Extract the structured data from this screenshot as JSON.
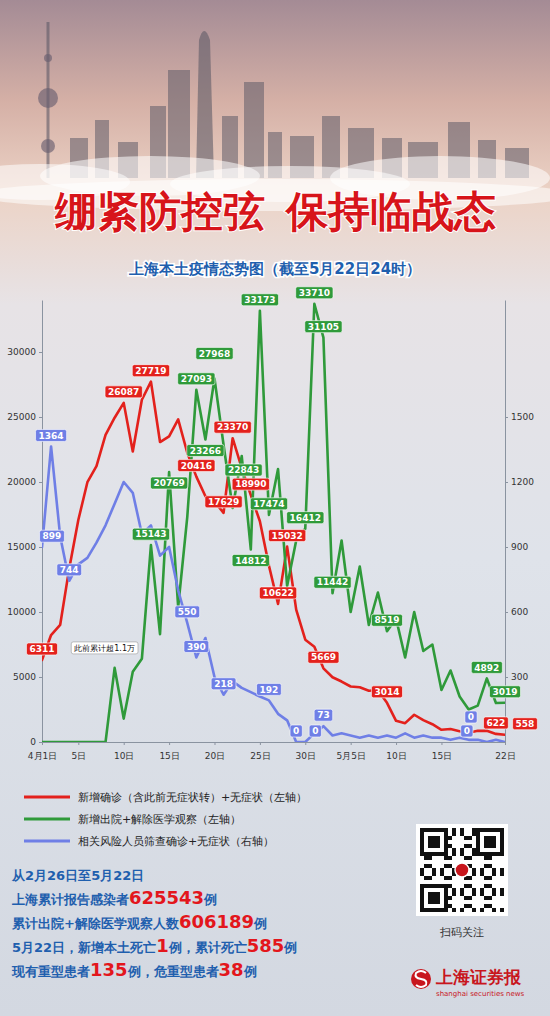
{
  "chart_data": {
    "type": "line",
    "title": "绷紧防控弦  保持临战态",
    "subtitle": "上海本土疫情态势图（截至5月22日24时）",
    "categories": [
      "4月1日",
      null,
      null,
      null,
      "5日",
      null,
      null,
      null,
      null,
      "10日",
      null,
      null,
      null,
      null,
      "15日",
      null,
      null,
      null,
      null,
      "20日",
      null,
      null,
      null,
      null,
      "25日",
      null,
      null,
      null,
      null,
      "30日",
      null,
      null,
      null,
      null,
      "5月5日",
      null,
      null,
      null,
      null,
      "10日",
      null,
      null,
      null,
      null,
      "15日",
      null,
      null,
      null,
      null,
      null,
      null,
      "22日"
    ],
    "ylim": [
      0,
      34000
    ],
    "yticks": [
      0,
      5000,
      10000,
      15000,
      20000,
      25000,
      30000
    ],
    "y2lim": [
      0,
      2040
    ],
    "y2ticks": [
      300,
      600,
      900,
      1200,
      1500
    ],
    "grid": false,
    "legend": "bottom",
    "data_labels": true,
    "series": [
      {
        "name": "新增确诊（含此前无症状转）+无症状（左轴）",
        "color": "#e3211c",
        "marker": "none",
        "line_style": "solid",
        "values": [
          6311,
          8226,
          9006,
          13354,
          17077,
          19982,
          21222,
          23624,
          24944,
          26087,
          22348,
          26330,
          27719,
          23072,
          23513,
          24820,
          22248,
          20416,
          18901,
          18495,
          17629,
          23370,
          21058,
          18990,
          16980,
          13562,
          10622,
          15032,
          10181,
          7872,
          7333,
          5669,
          4982,
          4651,
          4269,
          4214,
          3947,
          3975,
          3014,
          1631,
          1449,
          2096,
          1681,
          1369,
          938,
          1000,
          823,
          719,
          858,
          868,
          622,
          558
        ],
        "value_labels": [
          "6311",
          null,
          null,
          null,
          null,
          null,
          null,
          null,
          null,
          "26087",
          null,
          null,
          "27719",
          null,
          null,
          null,
          null,
          "20416",
          null,
          null,
          "17629",
          "23370",
          null,
          "18990",
          null,
          null,
          "10622",
          "15032",
          null,
          null,
          null,
          "5669",
          null,
          null,
          null,
          null,
          null,
          null,
          "3014",
          null,
          null,
          null,
          null,
          null,
          null,
          null,
          null,
          null,
          null,
          null,
          "622",
          "558"
        ]
      },
      {
        "name": "新增出院+解除医学观察（左轴）",
        "color": "#2f9a3a",
        "marker": "none",
        "line_style": "solid",
        "annotation": "此前累计超1.1万",
        "values": [
          0,
          0,
          0,
          0,
          0,
          0,
          0,
          0,
          5700,
          1800,
          5400,
          6400,
          15143,
          8300,
          20769,
          10400,
          17300,
          27093,
          23266,
          27968,
          22843,
          18000,
          22000,
          14812,
          33173,
          17474,
          21000,
          12000,
          15500,
          16412,
          33710,
          31105,
          11442,
          15500,
          10000,
          13500,
          9000,
          11500,
          8519,
          9500,
          6500,
          10000,
          7000,
          7500,
          4000,
          5500,
          3500,
          2500,
          2800,
          4892,
          3000,
          3019
        ],
        "value_labels": [
          null,
          null,
          null,
          null,
          null,
          null,
          null,
          null,
          null,
          null,
          null,
          null,
          "15143",
          null,
          "20769",
          null,
          null,
          "27093",
          "23266",
          "27968",
          "22843",
          null,
          null,
          "14812",
          "33173",
          "17474",
          null,
          null,
          null,
          "16412",
          "33710",
          "31105",
          "11442",
          null,
          null,
          null,
          null,
          null,
          "8519",
          null,
          null,
          null,
          null,
          null,
          null,
          null,
          null,
          null,
          null,
          "4892",
          null,
          "3019"
        ]
      },
      {
        "name": "相关风险人员筛查确诊+无症状（右轴）",
        "color": "#6f7fe6",
        "marker": "none",
        "line_style": "solid",
        "axis": "y2",
        "values": [
          899,
          1364,
          950,
          744,
          820,
          850,
          920,
          1000,
          1100,
          1200,
          1150,
          960,
          1000,
          860,
          900,
          700,
          550,
          390,
          480,
          300,
          218,
          280,
          250,
          230,
          210,
          192,
          130,
          100,
          0,
          0,
          40,
          73,
          30,
          40,
          30,
          20,
          30,
          20,
          30,
          20,
          40,
          20,
          30,
          20,
          20,
          10,
          20,
          10,
          10,
          0,
          10,
          0
        ],
        "value_labels": [
          "899",
          "1364",
          null,
          "744",
          null,
          null,
          null,
          null,
          null,
          null,
          null,
          null,
          null,
          null,
          null,
          null,
          "550",
          "390",
          null,
          null,
          "218",
          null,
          null,
          null,
          null,
          "192",
          null,
          null,
          "0",
          "0",
          null,
          "73",
          null,
          null,
          null,
          null,
          null,
          null,
          null,
          null,
          null,
          null,
          null,
          null,
          null,
          null,
          null,
          null,
          null,
          "0",
          null,
          "0"
        ]
      }
    ]
  },
  "summary": [
    [
      {
        "text": "从2月26日至5月22日"
      }
    ],
    [
      {
        "text": "上海累计报告感染者"
      },
      {
        "value": 625543
      },
      {
        "text": "例"
      }
    ],
    [
      {
        "text": "累计出院+解除医学观察人数"
      },
      {
        "value": 606189
      },
      {
        "text": "例"
      }
    ],
    [
      {
        "text": "5月22日，新增本土死亡"
      },
      {
        "value": 1
      },
      {
        "text": "例，累计死亡"
      },
      {
        "value": 585
      },
      {
        "text": "例"
      }
    ],
    [
      {
        "text": "现有重型患者"
      },
      {
        "value": 135
      },
      {
        "text": "例，危重型患者"
      },
      {
        "value": 38
      },
      {
        "text": "例"
      }
    ]
  ],
  "footer": {
    "qr_caption": "扫码关注",
    "logo": "上海证券报",
    "logo_en": "shanghai securities news"
  }
}
